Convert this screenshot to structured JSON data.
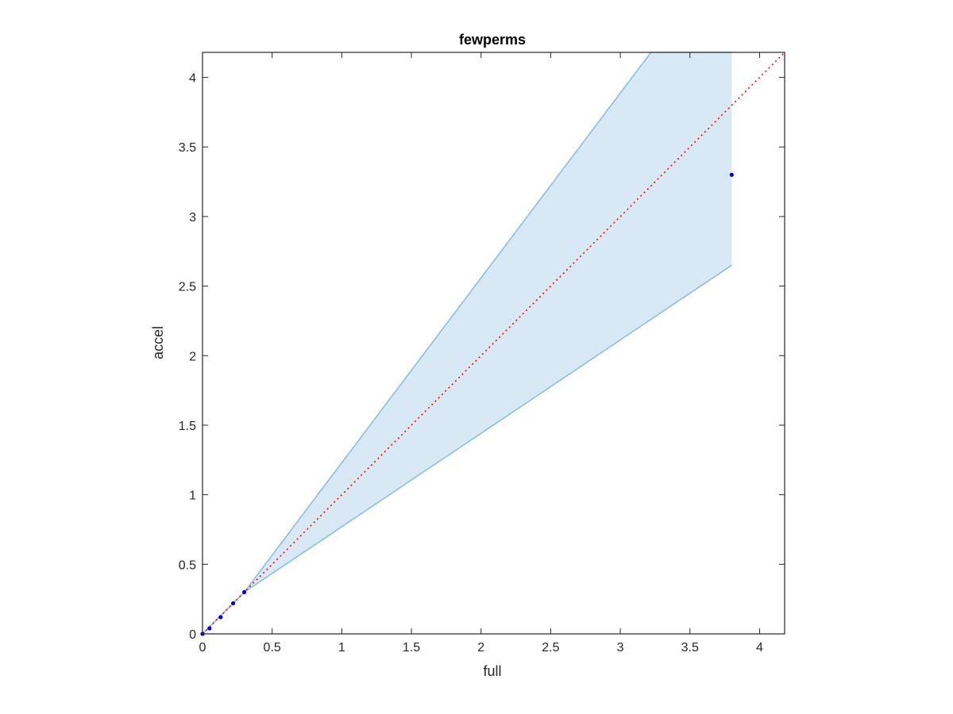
{
  "chart_data": {
    "type": "line",
    "title": "fewperms",
    "xlabel": "full",
    "ylabel": "accel",
    "xlim": [
      0,
      4.18
    ],
    "ylim": [
      0,
      4.18
    ],
    "xticks": [
      0,
      0.5,
      1,
      1.5,
      2,
      2.5,
      3,
      3.5,
      4
    ],
    "yticks": [
      0,
      0.5,
      1,
      1.5,
      2,
      2.5,
      3,
      3.5,
      4
    ],
    "xtick_labels": [
      "0",
      "0.5",
      "1",
      "1.5",
      "2",
      "2.5",
      "3",
      "3.5",
      "4"
    ],
    "ytick_labels": [
      "0",
      "0.5",
      "1",
      "1.5",
      "2",
      "2.5",
      "3",
      "3.5",
      "4"
    ],
    "grid": false,
    "band": {
      "upper": {
        "x": [
          0,
          0.3,
          3.22,
          3.8
        ],
        "y": [
          0,
          0.3,
          4.18,
          4.18
        ]
      },
      "lower": {
        "x": [
          0,
          0.3,
          3.8
        ],
        "y": [
          0,
          0.3,
          2.65
        ]
      },
      "fill_color": "#d9e8f5",
      "line_color": "#8bbfe0"
    },
    "reference_line": {
      "x": [
        0,
        4.18
      ],
      "y": [
        0,
        4.18
      ],
      "color": "#ff0000",
      "style": "dotted"
    },
    "series": [
      {
        "marker_color": "#0000cc",
        "x": [
          0.0,
          0.05,
          0.13,
          0.22,
          0.3,
          3.8
        ],
        "y": [
          0.0,
          0.04,
          0.12,
          0.22,
          0.3,
          3.3
        ]
      }
    ]
  }
}
